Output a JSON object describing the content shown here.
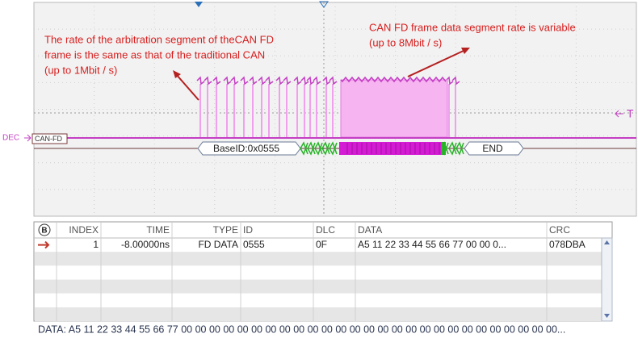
{
  "scope": {
    "annotations": [
      {
        "lines": [
          "The rate of the arbitration segment of theCAN FD",
          "frame is the same as that of the traditional CAN",
          "(up to 1Mbit / s)"
        ]
      },
      {
        "lines": [
          "CAN FD frame data segment rate is variable",
          "(up to 8Mbit / s)"
        ]
      }
    ],
    "trigger_label": "T",
    "channel_label": "DEC",
    "bus_label": "CAN-FD",
    "decode": {
      "id": "BaseID:0x0555",
      "end": "END"
    }
  },
  "table": {
    "icon": "B",
    "headers": [
      "INDEX",
      "TIME",
      "TYPE",
      "ID",
      "DLC",
      "DATA",
      "CRC"
    ],
    "rows": [
      [
        "1",
        "-8.00000ns",
        "FD DATA",
        "0555",
        "0F",
        "A5 11 22 33 44 55 66 77 00 00 0...",
        "078DBA"
      ]
    ]
  },
  "status": "DATA: A5 11 22 33 44 55 66 77 00 00 00 00 00 00 00 00 00 00 00 00 00 00 00 00 00 00 00 00 00 00 00 00 00 00 00..."
}
